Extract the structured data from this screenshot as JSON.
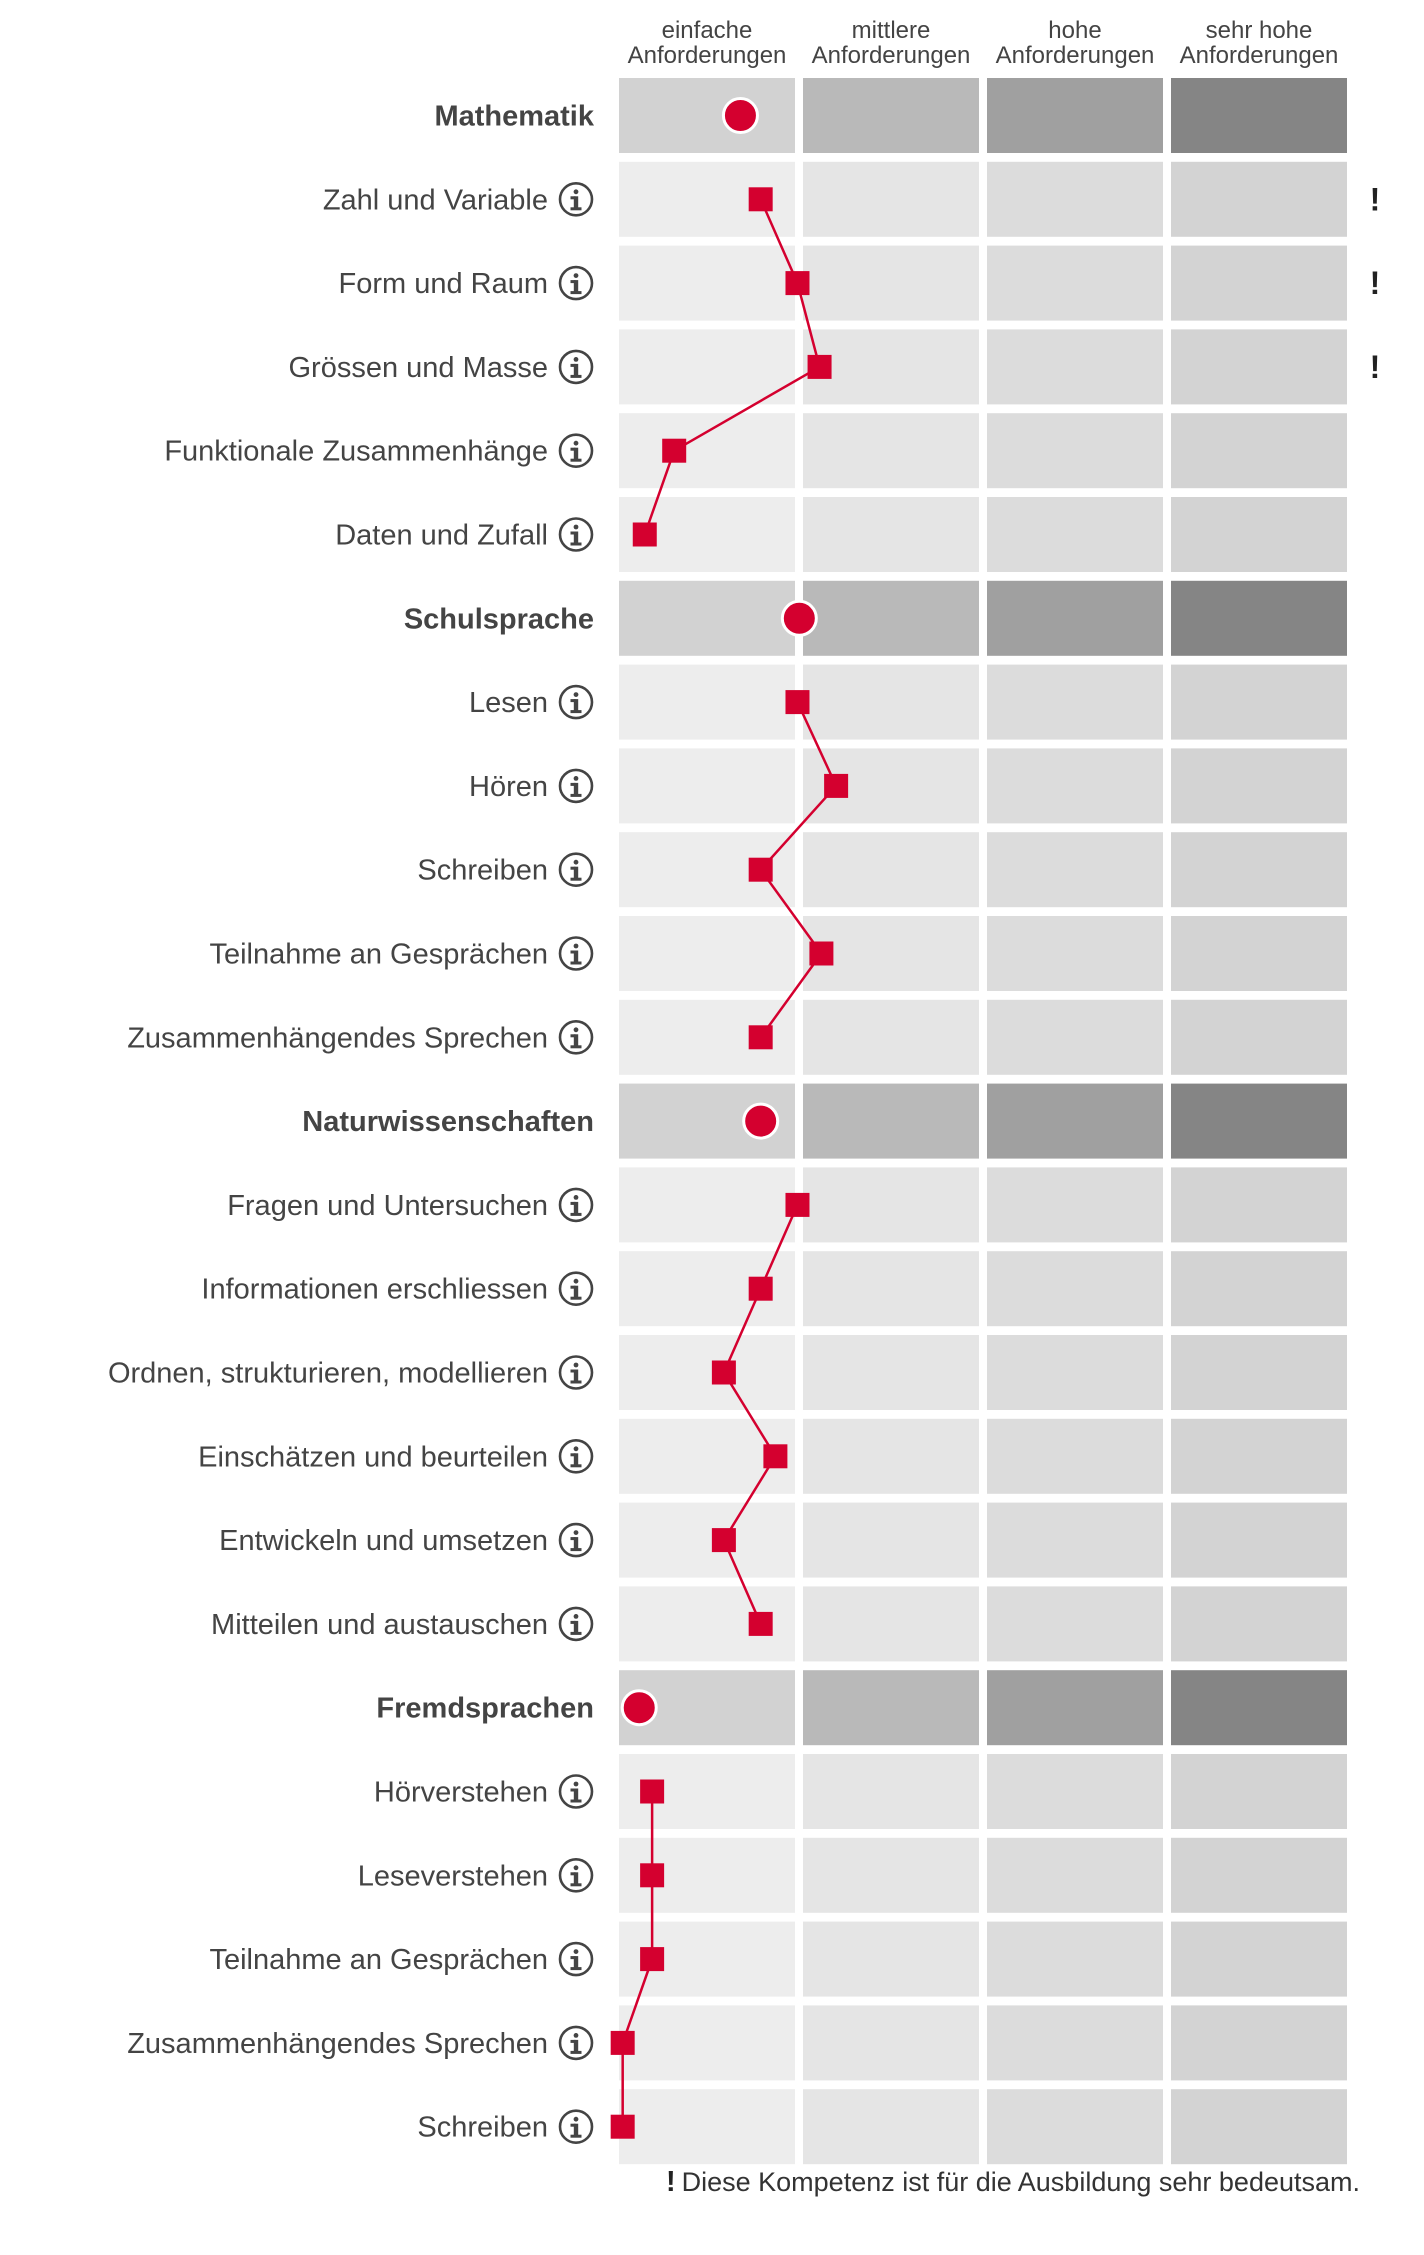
{
  "chart_data": {
    "type": "line",
    "levels": [
      "einfache Anforderungen",
      "mittlere Anforderungen",
      "hohe Anforderungen",
      "sehr hohe Anforderungen"
    ],
    "level_header_lines": [
      [
        "einfache",
        "Anforderungen"
      ],
      [
        "mittlere",
        "Anforderungen"
      ],
      [
        "hohe",
        "Anforderungen"
      ],
      [
        "sehr hohe",
        "Anforderungen"
      ]
    ],
    "xlim": [
      0,
      4
    ],
    "groups": [
      {
        "name": "Mathematik",
        "overall": 0.66,
        "items": [
          {
            "label": "Zahl und Variable",
            "value": 0.77,
            "important": true
          },
          {
            "label": "Form und Raum",
            "value": 0.97,
            "important": true
          },
          {
            "label": "Grössen und Masse",
            "value": 1.09,
            "important": true
          },
          {
            "label": "Funktionale Zusammenhänge",
            "value": 0.3,
            "important": false
          },
          {
            "label": "Daten und Zufall",
            "value": 0.14,
            "important": false
          }
        ]
      },
      {
        "name": "Schulsprache",
        "overall": 0.98,
        "items": [
          {
            "label": "Lesen",
            "value": 0.97,
            "important": false
          },
          {
            "label": "Hören",
            "value": 1.18,
            "important": false
          },
          {
            "label": "Schreiben",
            "value": 0.77,
            "important": false
          },
          {
            "label": "Teilnahme an Gesprächen",
            "value": 1.1,
            "important": false
          },
          {
            "label": "Zusammenhängendes Sprechen",
            "value": 0.77,
            "important": false
          }
        ]
      },
      {
        "name": "Naturwissenschaften",
        "overall": 0.77,
        "items": [
          {
            "label": "Fragen und Untersuchen",
            "value": 0.97,
            "important": false
          },
          {
            "label": "Informationen erschliessen",
            "value": 0.77,
            "important": false
          },
          {
            "label": "Ordnen, strukturieren, modellieren",
            "value": 0.57,
            "important": false
          },
          {
            "label": "Einschätzen und beurteilen",
            "value": 0.85,
            "important": false
          },
          {
            "label": "Entwickeln und umsetzen",
            "value": 0.57,
            "important": false
          },
          {
            "label": "Mitteilen und austauschen",
            "value": 0.77,
            "important": false
          }
        ]
      },
      {
        "name": "Fremdsprachen",
        "overall": 0.11,
        "items": [
          {
            "label": "Hörverstehen",
            "value": 0.18,
            "important": false
          },
          {
            "label": "Leseverstehen",
            "value": 0.18,
            "important": false
          },
          {
            "label": "Teilnahme an Gesprächen",
            "value": 0.18,
            "important": false
          },
          {
            "label": "Zusammenhängendes Sprechen",
            "value": 0.02,
            "important": false
          },
          {
            "label": "Schreiben",
            "value": 0.02,
            "important": false
          }
        ]
      }
    ],
    "colors": {
      "marker": "#d4002f",
      "group_cells": [
        "#d2d2d2",
        "#b9b9b9",
        "#a0a0a0",
        "#858585"
      ],
      "item_cells": [
        "#ededed",
        "#e5e5e5",
        "#dcdcdc",
        "#d3d3d3"
      ]
    }
  },
  "info_icon": "info-circle-icon",
  "important_marker": "!",
  "footnote": {
    "marker": "!",
    "text": "Diese Kompetenz ist für die Ausbildung sehr bedeutsam."
  }
}
